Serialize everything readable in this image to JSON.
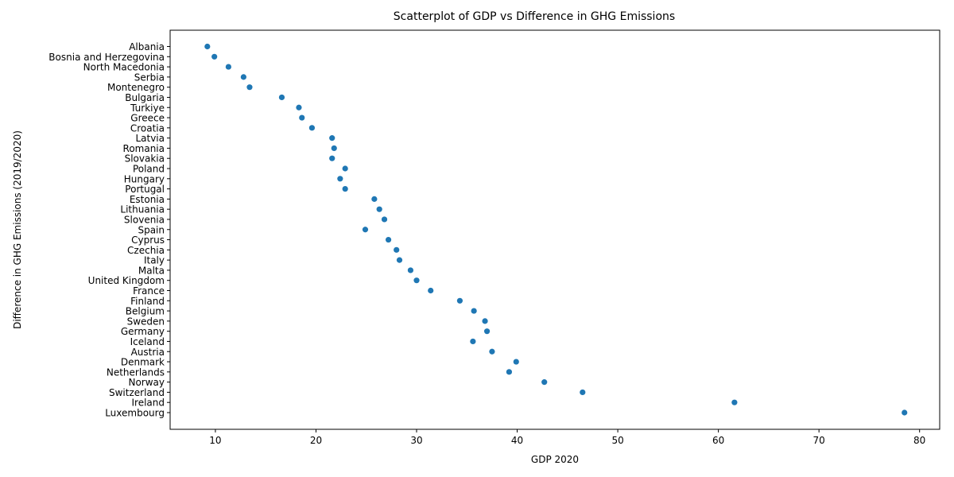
{
  "chart_data": {
    "type": "scatter",
    "title": "Scatterplot of GDP vs Difference in GHG Emissions",
    "xlabel": "GDP 2020",
    "ylabel": "Difference in GHG Emissions (2019/2020)",
    "xlim": [
      5.5,
      82
    ],
    "x_ticks": [
      10,
      20,
      30,
      40,
      50,
      60,
      70,
      80
    ],
    "grid": false,
    "legend": "none",
    "marker_color": "#1f77b4",
    "categories": [
      "Albania",
      "Bosnia and Herzegovina",
      "North Macedonia",
      "Serbia",
      "Montenegro",
      "Bulgaria",
      "Turkiye",
      "Greece",
      "Croatia",
      "Latvia",
      "Romania",
      "Slovakia",
      "Poland",
      "Hungary",
      "Portugal",
      "Estonia",
      "Lithuania",
      "Slovenia",
      "Spain",
      "Cyprus",
      "Czechia",
      "Italy",
      "Malta",
      "United Kingdom",
      "France",
      "Finland",
      "Belgium",
      "Sweden",
      "Germany",
      "Iceland",
      "Austria",
      "Denmark",
      "Netherlands",
      "Norway",
      "Switzerland",
      "Ireland",
      "Luxembourg"
    ],
    "points": [
      {
        "country": "Albania",
        "gdp": 9.2
      },
      {
        "country": "Bosnia and Herzegovina",
        "gdp": 9.9
      },
      {
        "country": "North Macedonia",
        "gdp": 11.3
      },
      {
        "country": "Serbia",
        "gdp": 12.8
      },
      {
        "country": "Montenegro",
        "gdp": 13.4
      },
      {
        "country": "Bulgaria",
        "gdp": 16.6
      },
      {
        "country": "Turkiye",
        "gdp": 18.3
      },
      {
        "country": "Greece",
        "gdp": 18.6
      },
      {
        "country": "Croatia",
        "gdp": 19.6
      },
      {
        "country": "Latvia",
        "gdp": 21.6
      },
      {
        "country": "Romania",
        "gdp": 21.8
      },
      {
        "country": "Slovakia",
        "gdp": 21.6
      },
      {
        "country": "Poland",
        "gdp": 22.9
      },
      {
        "country": "Hungary",
        "gdp": 22.4
      },
      {
        "country": "Portugal",
        "gdp": 22.9
      },
      {
        "country": "Estonia",
        "gdp": 25.8
      },
      {
        "country": "Lithuania",
        "gdp": 26.3
      },
      {
        "country": "Slovenia",
        "gdp": 26.8
      },
      {
        "country": "Spain",
        "gdp": 24.9
      },
      {
        "country": "Cyprus",
        "gdp": 27.2
      },
      {
        "country": "Czechia",
        "gdp": 28.0
      },
      {
        "country": "Italy",
        "gdp": 28.3
      },
      {
        "country": "Malta",
        "gdp": 29.4
      },
      {
        "country": "United Kingdom",
        "gdp": 30.0
      },
      {
        "country": "France",
        "gdp": 31.4
      },
      {
        "country": "Finland",
        "gdp": 34.3
      },
      {
        "country": "Belgium",
        "gdp": 35.7
      },
      {
        "country": "Sweden",
        "gdp": 36.8
      },
      {
        "country": "Germany",
        "gdp": 37.0
      },
      {
        "country": "Iceland",
        "gdp": 35.6
      },
      {
        "country": "Austria",
        "gdp": 37.5
      },
      {
        "country": "Denmark",
        "gdp": 39.9
      },
      {
        "country": "Netherlands",
        "gdp": 39.2
      },
      {
        "country": "Norway",
        "gdp": 42.7
      },
      {
        "country": "Switzerland",
        "gdp": 46.5
      },
      {
        "country": "Ireland",
        "gdp": 61.6
      },
      {
        "country": "Luxembourg",
        "gdp": 78.5
      }
    ]
  }
}
